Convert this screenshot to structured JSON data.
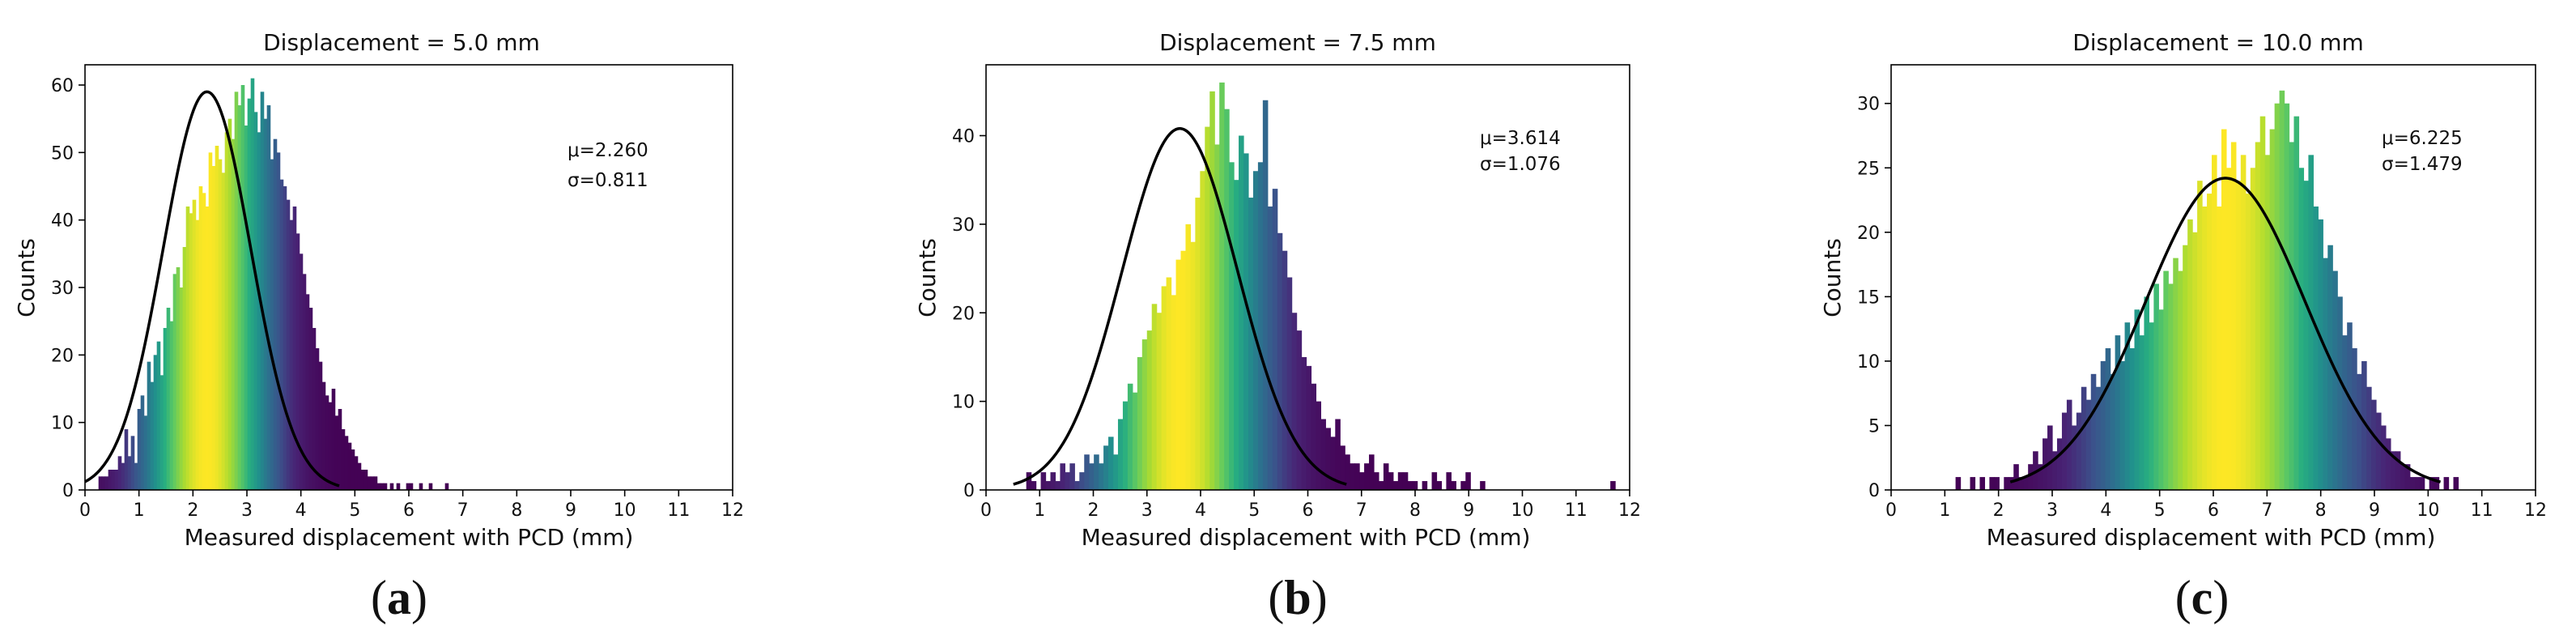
{
  "chart_data": [
    {
      "type": "bar",
      "panel_label": "a",
      "title": "Displacement = 5.0 mm",
      "xlabel": "Measured displacement with PCD (mm)",
      "ylabel": "Counts",
      "xlim": [
        0,
        12
      ],
      "ylim": [
        0,
        63
      ],
      "xticks": [
        0,
        1,
        2,
        3,
        4,
        5,
        6,
        7,
        8,
        9,
        10,
        11,
        12
      ],
      "yticks": [
        0,
        10,
        20,
        30,
        40,
        50,
        60
      ],
      "grid": false,
      "stats": {
        "mu": "μ=2.260",
        "sigma": "σ=0.811"
      },
      "fit": {
        "mean": 2.26,
        "sd": 0.811,
        "peak": 59
      },
      "bin_width": 0.06,
      "bin_start": 0.25,
      "counts": [
        2,
        2,
        2,
        3,
        3,
        3,
        5,
        4,
        9,
        5,
        8,
        4,
        12,
        14,
        11,
        19,
        16,
        20,
        22,
        17,
        24,
        27,
        25,
        32,
        33,
        30,
        36,
        42,
        41,
        43,
        40,
        45,
        44,
        42,
        50,
        48,
        51,
        49,
        47,
        53,
        55,
        52,
        59,
        57,
        60,
        54,
        58,
        61,
        56,
        53,
        59,
        55,
        57,
        49,
        52,
        50,
        46,
        45,
        43,
        40,
        42,
        38,
        35,
        32,
        29,
        27,
        24,
        21,
        19,
        16,
        14,
        13,
        15,
        11,
        12,
        9,
        8,
        7,
        6,
        5,
        4,
        3,
        3,
        2,
        2,
        2,
        1,
        1,
        1,
        0,
        1,
        0,
        1,
        0,
        0,
        1,
        1,
        0,
        0,
        1,
        0,
        0,
        1,
        0,
        0,
        0,
        0,
        1
      ]
    },
    {
      "type": "bar",
      "panel_label": "b",
      "title": "Displacement = 7.5 mm",
      "xlabel": "Measured displacement with PCD (mm)",
      "ylabel": "Counts",
      "xlim": [
        0,
        12
      ],
      "ylim": [
        0,
        48
      ],
      "xticks": [
        0,
        1,
        2,
        3,
        4,
        5,
        6,
        7,
        8,
        9,
        10,
        11,
        12
      ],
      "yticks": [
        0,
        10,
        20,
        30,
        40
      ],
      "grid": false,
      "stats": {
        "mu": "μ=3.614",
        "sigma": "σ=1.076"
      },
      "fit": {
        "mean": 3.614,
        "sd": 1.076,
        "peak": 40.8
      },
      "bin_width": 0.09,
      "bin_start": 0.75,
      "counts": [
        2,
        1,
        0,
        2,
        1,
        2,
        1,
        3,
        2,
        3,
        1,
        2,
        4,
        3,
        4,
        3,
        5,
        6,
        4,
        8,
        10,
        12,
        11,
        15,
        17,
        18,
        21,
        20,
        23,
        24,
        22,
        26,
        27,
        30,
        28,
        33,
        36,
        41,
        45,
        39,
        46,
        43,
        37,
        35,
        40,
        38,
        33,
        36,
        37,
        44,
        32,
        34,
        29,
        27,
        24,
        20,
        18,
        15,
        14,
        12,
        10,
        8,
        7,
        6,
        8,
        5,
        4,
        3,
        3,
        2,
        3,
        4,
        2,
        1,
        3,
        2,
        1,
        2,
        2,
        1,
        1,
        0,
        1,
        0,
        2,
        1,
        0,
        2,
        1,
        0,
        1,
        2,
        0,
        0,
        1,
        0,
        0,
        0,
        0,
        0,
        0,
        0,
        0,
        0,
        0,
        0,
        0,
        0,
        0,
        0,
        0,
        0,
        0,
        0,
        0,
        0,
        0,
        0,
        0,
        0,
        0,
        1
      ]
    },
    {
      "type": "bar",
      "panel_label": "c",
      "title": "Displacement = 10.0 mm",
      "xlabel": "Measured displacement with PCD (mm)",
      "ylabel": "Counts",
      "xlim": [
        0,
        12
      ],
      "ylim": [
        0,
        33
      ],
      "xticks": [
        0,
        1,
        2,
        3,
        4,
        5,
        6,
        7,
        8,
        9,
        10,
        11,
        12
      ],
      "yticks": [
        0,
        5,
        10,
        15,
        20,
        25,
        30
      ],
      "grid": false,
      "stats": {
        "mu": "μ=6.225",
        "sigma": "σ=1.479"
      },
      "fit": {
        "mean": 6.225,
        "sd": 1.479,
        "peak": 24.2
      },
      "bin_width": 0.09,
      "bin_start": 1.2,
      "counts": [
        1,
        0,
        0,
        1,
        0,
        1,
        0,
        1,
        1,
        0,
        1,
        1,
        2,
        1,
        1,
        2,
        3,
        2,
        4,
        5,
        3,
        4,
        6,
        7,
        5,
        6,
        8,
        7,
        9,
        8,
        10,
        11,
        9,
        12,
        10,
        13,
        11,
        14,
        12,
        15,
        13,
        16,
        14,
        17,
        16,
        18,
        17,
        19,
        21,
        20,
        24,
        22,
        23,
        26,
        22,
        28,
        25,
        27,
        24,
        26,
        23,
        25,
        27,
        29,
        26,
        28,
        30,
        31,
        30,
        27,
        29,
        25,
        24,
        26,
        22,
        21,
        18,
        19,
        17,
        15,
        12,
        13,
        11,
        9,
        10,
        8,
        7,
        6,
        5,
        4,
        3,
        3,
        2,
        2,
        1,
        1,
        1,
        0,
        1,
        1,
        0,
        1,
        0,
        1
      ]
    }
  ]
}
